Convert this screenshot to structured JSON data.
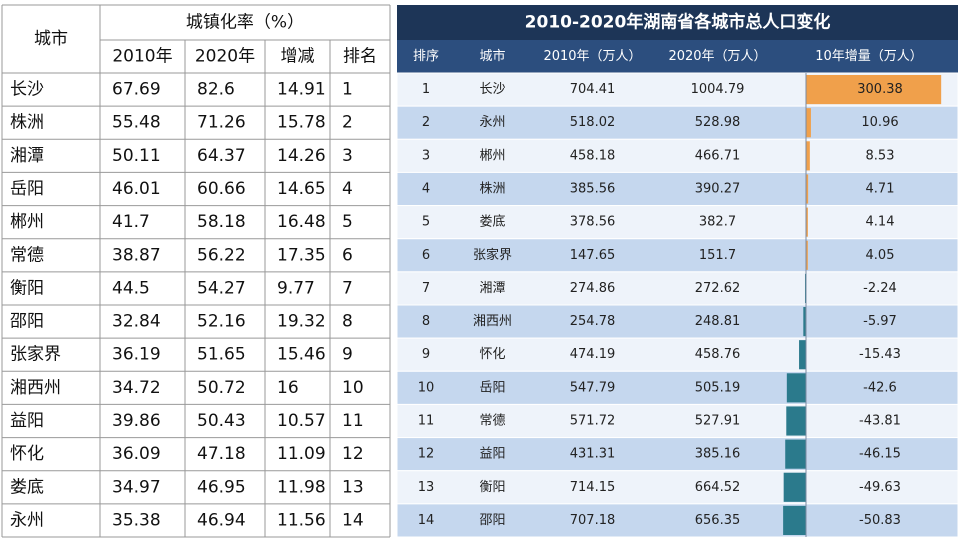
{
  "left_table": {
    "header": {
      "city": "城市",
      "group": "城镇化率（%）",
      "columns": [
        "2010年",
        "2020年",
        "增减",
        "排名"
      ]
    },
    "rows": [
      [
        "长沙",
        67.69,
        82.6,
        14.91,
        1
      ],
      [
        "株洲",
        55.48,
        71.26,
        15.78,
        2
      ],
      [
        "湘潭",
        50.11,
        64.37,
        14.26,
        3
      ],
      [
        "岳阳",
        46.01,
        60.66,
        14.65,
        4
      ],
      [
        "郴州",
        41.7,
        58.18,
        16.48,
        5
      ],
      [
        "常德",
        38.87,
        56.22,
        17.35,
        6
      ],
      [
        "衡阳",
        44.5,
        54.27,
        9.77,
        7
      ],
      [
        "邵阳",
        32.84,
        52.16,
        19.32,
        8
      ],
      [
        "张家界",
        36.19,
        51.65,
        15.46,
        9
      ],
      [
        "湘西州",
        34.72,
        50.72,
        16,
        10
      ],
      [
        "益阳",
        39.86,
        50.43,
        10.57,
        11
      ],
      [
        "怀化",
        36.09,
        47.18,
        11.09,
        12
      ],
      [
        "娄底",
        34.97,
        46.95,
        11.98,
        13
      ],
      [
        "永州",
        35.38,
        46.94,
        11.56,
        14
      ]
    ]
  },
  "right_table": {
    "title": "2010-2020年湖南省各城市总人口变化",
    "columns": [
      "排序",
      "城市",
      "2010年（万人）",
      "2020年（万人）",
      "10年增量（万人）"
    ],
    "rows": [
      [
        1,
        "长沙",
        704.41,
        1004.79,
        300.38
      ],
      [
        2,
        "永州",
        518.02,
        528.98,
        10.96
      ],
      [
        3,
        "郴州",
        458.18,
        466.71,
        8.53
      ],
      [
        4,
        "株洲",
        385.56,
        390.27,
        4.71
      ],
      [
        5,
        "娄底",
        378.56,
        382.7,
        4.14
      ],
      [
        6,
        "张家界",
        147.65,
        151.7,
        4.05
      ],
      [
        7,
        "湘潭",
        274.86,
        272.62,
        -2.24
      ],
      [
        8,
        "湘西州",
        254.78,
        248.81,
        -5.97
      ],
      [
        9,
        "怀化",
        474.19,
        458.76,
        -15.43
      ],
      [
        10,
        "岳阳",
        547.79,
        505.19,
        -42.6
      ],
      [
        11,
        "常德",
        571.72,
        527.91,
        -43.81
      ],
      [
        12,
        "益阳",
        431.31,
        385.16,
        -46.15
      ],
      [
        13,
        "衡阳",
        714.15,
        664.52,
        -49.63
      ],
      [
        14,
        "邵阳",
        707.18,
        656.35,
        -50.83
      ]
    ]
  }
}
